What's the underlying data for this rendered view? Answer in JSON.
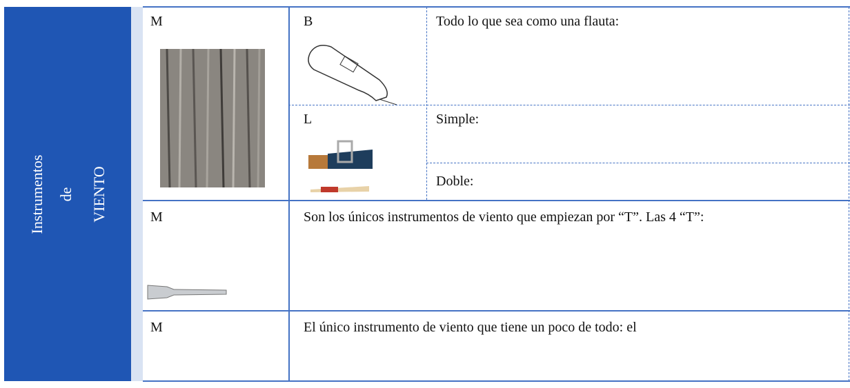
{
  "side_label": [
    "Instrumentos",
    "de",
    "VIENTO"
  ],
  "rows": [
    {
      "letter": "M",
      "parts": [
        {
          "letter": "B",
          "text": "Todo lo que sea como una flauta:"
        },
        {
          "letter": "L",
          "texts": [
            "Simple:",
            "Doble:"
          ]
        }
      ]
    },
    {
      "letter": "M",
      "text": "Son los únicos instrumentos de viento que empiezan por “T”. Las 4 “T”:"
    },
    {
      "letter": "M",
      "text": "El único instrumento de viento que tiene un poco de todo: el"
    }
  ]
}
